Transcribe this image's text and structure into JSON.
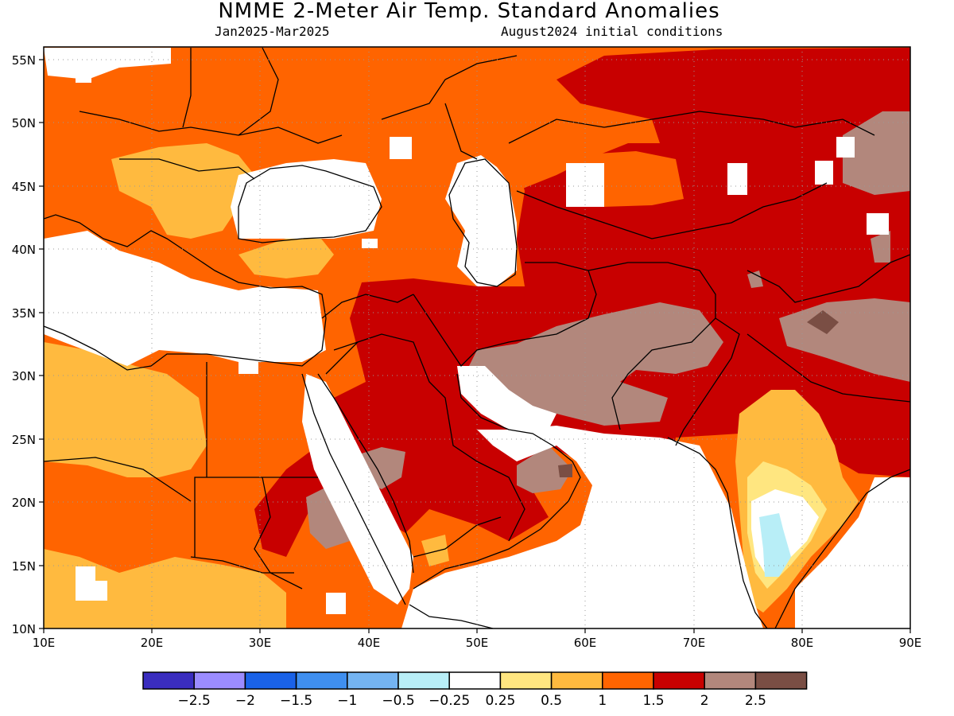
{
  "header": {
    "title": "NMME 2-Meter Air Temp. Standard Anomalies",
    "period": "Jan2025-Mar2025",
    "init": "August2024 initial conditions"
  },
  "map": {
    "lon_range": [
      10,
      90
    ],
    "lat_range": [
      10,
      56
    ],
    "lon_ticks": [
      "10E",
      "20E",
      "30E",
      "40E",
      "50E",
      "60E",
      "70E",
      "80E",
      "90E"
    ],
    "lat_ticks": [
      "55N",
      "50N",
      "45N",
      "40N",
      "35N",
      "30N",
      "25N",
      "20N",
      "15N",
      "10N"
    ],
    "grid": true
  },
  "colorbar": {
    "colors": [
      "#3a2dbf",
      "#9b8cff",
      "#1a62e8",
      "#3f8ff0",
      "#74b4f2",
      "#b8eef7",
      "#ffffff",
      "#ffe680",
      "#ffba3f",
      "#ff6400",
      "#c80000",
      "#b2877c",
      "#7a4e44"
    ],
    "labels": [
      "-2.5",
      "-2",
      "-1.5",
      "-1",
      "-0.5",
      "-0.25",
      "0.25",
      "0.5",
      "1",
      "1.5",
      "2",
      "2.5"
    ]
  },
  "palette": {
    "land_neutral": "#ffffff",
    "c05": "#ffe680",
    "c1": "#ffba3f",
    "c15": "#ff6400",
    "c2": "#c80000",
    "c25": "#b2877c",
    "c3": "#7a4e44",
    "cneg": "#b8eef7"
  }
}
